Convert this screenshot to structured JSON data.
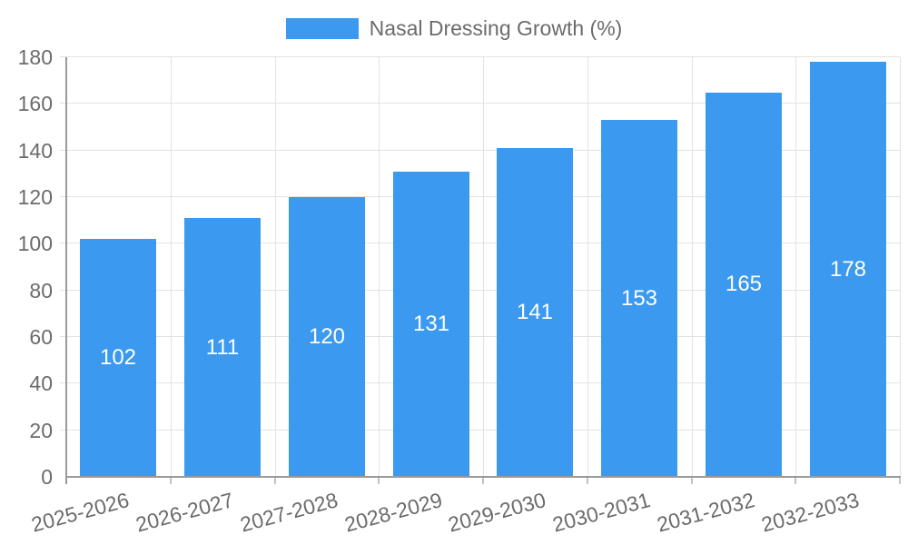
{
  "chart_data": {
    "type": "bar",
    "title": "",
    "legend": {
      "label": "Nasal Dressing Growth (%)",
      "position": "top"
    },
    "categories": [
      "2025-2026",
      "2026-2027",
      "2027-2028",
      "2028-2029",
      "2029-2030",
      "2030-2031",
      "2031-2032",
      "2032-2033"
    ],
    "series": [
      {
        "name": "Nasal Dressing Growth (%)",
        "values": [
          102,
          111,
          120,
          131,
          141,
          153,
          165,
          178
        ],
        "color": "#3b99f0"
      }
    ],
    "value_labels": {
      "visible": true,
      "position": "center",
      "color": "#ffffff"
    },
    "xlabel": "",
    "ylabel": "",
    "ylim": [
      0,
      180
    ],
    "yticks": [
      0,
      20,
      40,
      60,
      80,
      100,
      120,
      140,
      160,
      180
    ],
    "grid": true,
    "x_label_rotation_deg": -15,
    "colors": {
      "bar": "#3b99f0",
      "grid": "#e2e2e2",
      "axis_line": "#9a9a9a",
      "axis_tick": "#c2c2c2",
      "axis_text": "#6b6b6b",
      "background": "#ffffff"
    }
  }
}
